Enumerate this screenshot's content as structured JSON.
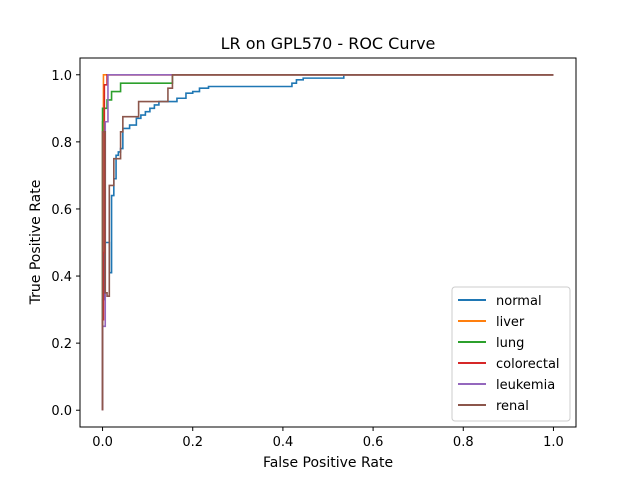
{
  "chart_data": {
    "type": "line",
    "title": "LR on GPL570 - ROC Curve",
    "xlabel": "False Positive Rate",
    "ylabel": "True Positive Rate",
    "xlim": [
      -0.05,
      1.05
    ],
    "ylim": [
      -0.05,
      1.05
    ],
    "xticks": [
      "0.0",
      "0.2",
      "0.4",
      "0.6",
      "0.8",
      "1.0"
    ],
    "yticks": [
      "0.0",
      "0.2",
      "0.4",
      "0.6",
      "0.8",
      "1.0"
    ],
    "grid": false,
    "legend": "lower right",
    "series": [
      {
        "name": "normal",
        "color": "#1f77b4",
        "points": [
          [
            0,
            0
          ],
          [
            0,
            0.33
          ],
          [
            0.005,
            0.33
          ],
          [
            0.005,
            0.5
          ],
          [
            0.015,
            0.5
          ],
          [
            0.015,
            0.41
          ],
          [
            0.02,
            0.41
          ],
          [
            0.02,
            0.64
          ],
          [
            0.025,
            0.64
          ],
          [
            0.025,
            0.69
          ],
          [
            0.03,
            0.69
          ],
          [
            0.03,
            0.76
          ],
          [
            0.035,
            0.76
          ],
          [
            0.035,
            0.77
          ],
          [
            0.04,
            0.77
          ],
          [
            0.04,
            0.78
          ],
          [
            0.045,
            0.78
          ],
          [
            0.045,
            0.84
          ],
          [
            0.06,
            0.84
          ],
          [
            0.06,
            0.85
          ],
          [
            0.075,
            0.85
          ],
          [
            0.075,
            0.87
          ],
          [
            0.085,
            0.87
          ],
          [
            0.085,
            0.88
          ],
          [
            0.095,
            0.88
          ],
          [
            0.095,
            0.89
          ],
          [
            0.105,
            0.89
          ],
          [
            0.105,
            0.9
          ],
          [
            0.115,
            0.9
          ],
          [
            0.115,
            0.91
          ],
          [
            0.125,
            0.91
          ],
          [
            0.125,
            0.92
          ],
          [
            0.165,
            0.92
          ],
          [
            0.165,
            0.93
          ],
          [
            0.185,
            0.93
          ],
          [
            0.185,
            0.945
          ],
          [
            0.2,
            0.945
          ],
          [
            0.2,
            0.95
          ],
          [
            0.215,
            0.95
          ],
          [
            0.215,
            0.96
          ],
          [
            0.235,
            0.96
          ],
          [
            0.235,
            0.965
          ],
          [
            0.42,
            0.965
          ],
          [
            0.42,
            0.975
          ],
          [
            0.43,
            0.975
          ],
          [
            0.43,
            0.985
          ],
          [
            0.445,
            0.985
          ],
          [
            0.445,
            0.99
          ],
          [
            0.535,
            0.99
          ],
          [
            0.535,
            1.0
          ],
          [
            1.0,
            1.0
          ]
        ]
      },
      {
        "name": "liver",
        "color": "#ff7f0e",
        "points": [
          [
            0,
            0
          ],
          [
            0,
            0.86
          ],
          [
            0.002,
            0.86
          ],
          [
            0.002,
            1.0
          ],
          [
            1.0,
            1.0
          ]
        ]
      },
      {
        "name": "lung",
        "color": "#2ca02c",
        "points": [
          [
            0,
            0
          ],
          [
            0,
            0.9
          ],
          [
            0.01,
            0.9
          ],
          [
            0.01,
            0.925
          ],
          [
            0.02,
            0.925
          ],
          [
            0.02,
            0.95
          ],
          [
            0.04,
            0.95
          ],
          [
            0.04,
            0.975
          ],
          [
            0.155,
            0.975
          ],
          [
            0.155,
            1.0
          ],
          [
            1.0,
            1.0
          ]
        ]
      },
      {
        "name": "colorectal",
        "color": "#d62728",
        "points": [
          [
            0,
            0
          ],
          [
            0,
            0.27
          ],
          [
            0.002,
            0.27
          ],
          [
            0.002,
            0.47
          ],
          [
            0.004,
            0.47
          ],
          [
            0.004,
            0.97
          ],
          [
            0.01,
            0.97
          ],
          [
            0.01,
            1.0
          ],
          [
            1.0,
            1.0
          ]
        ]
      },
      {
        "name": "leukemia",
        "color": "#9467bd",
        "points": [
          [
            0,
            0
          ],
          [
            0,
            0.25
          ],
          [
            0.006,
            0.25
          ],
          [
            0.006,
            0.86
          ],
          [
            0.012,
            0.86
          ],
          [
            0.012,
            1.0
          ],
          [
            1.0,
            1.0
          ]
        ]
      },
      {
        "name": "renal",
        "color": "#8c564b",
        "points": [
          [
            0,
            0
          ],
          [
            0,
            0.83
          ],
          [
            0.006,
            0.83
          ],
          [
            0.006,
            0.35
          ],
          [
            0.01,
            0.35
          ],
          [
            0.01,
            0.34
          ],
          [
            0.015,
            0.34
          ],
          [
            0.015,
            0.67
          ],
          [
            0.025,
            0.67
          ],
          [
            0.025,
            0.75
          ],
          [
            0.04,
            0.75
          ],
          [
            0.04,
            0.83
          ],
          [
            0.045,
            0.83
          ],
          [
            0.045,
            0.875
          ],
          [
            0.08,
            0.875
          ],
          [
            0.08,
            0.92
          ],
          [
            0.145,
            0.92
          ],
          [
            0.145,
            0.96
          ],
          [
            0.155,
            0.96
          ],
          [
            0.155,
            1.0
          ],
          [
            1.0,
            1.0
          ]
        ]
      }
    ]
  }
}
